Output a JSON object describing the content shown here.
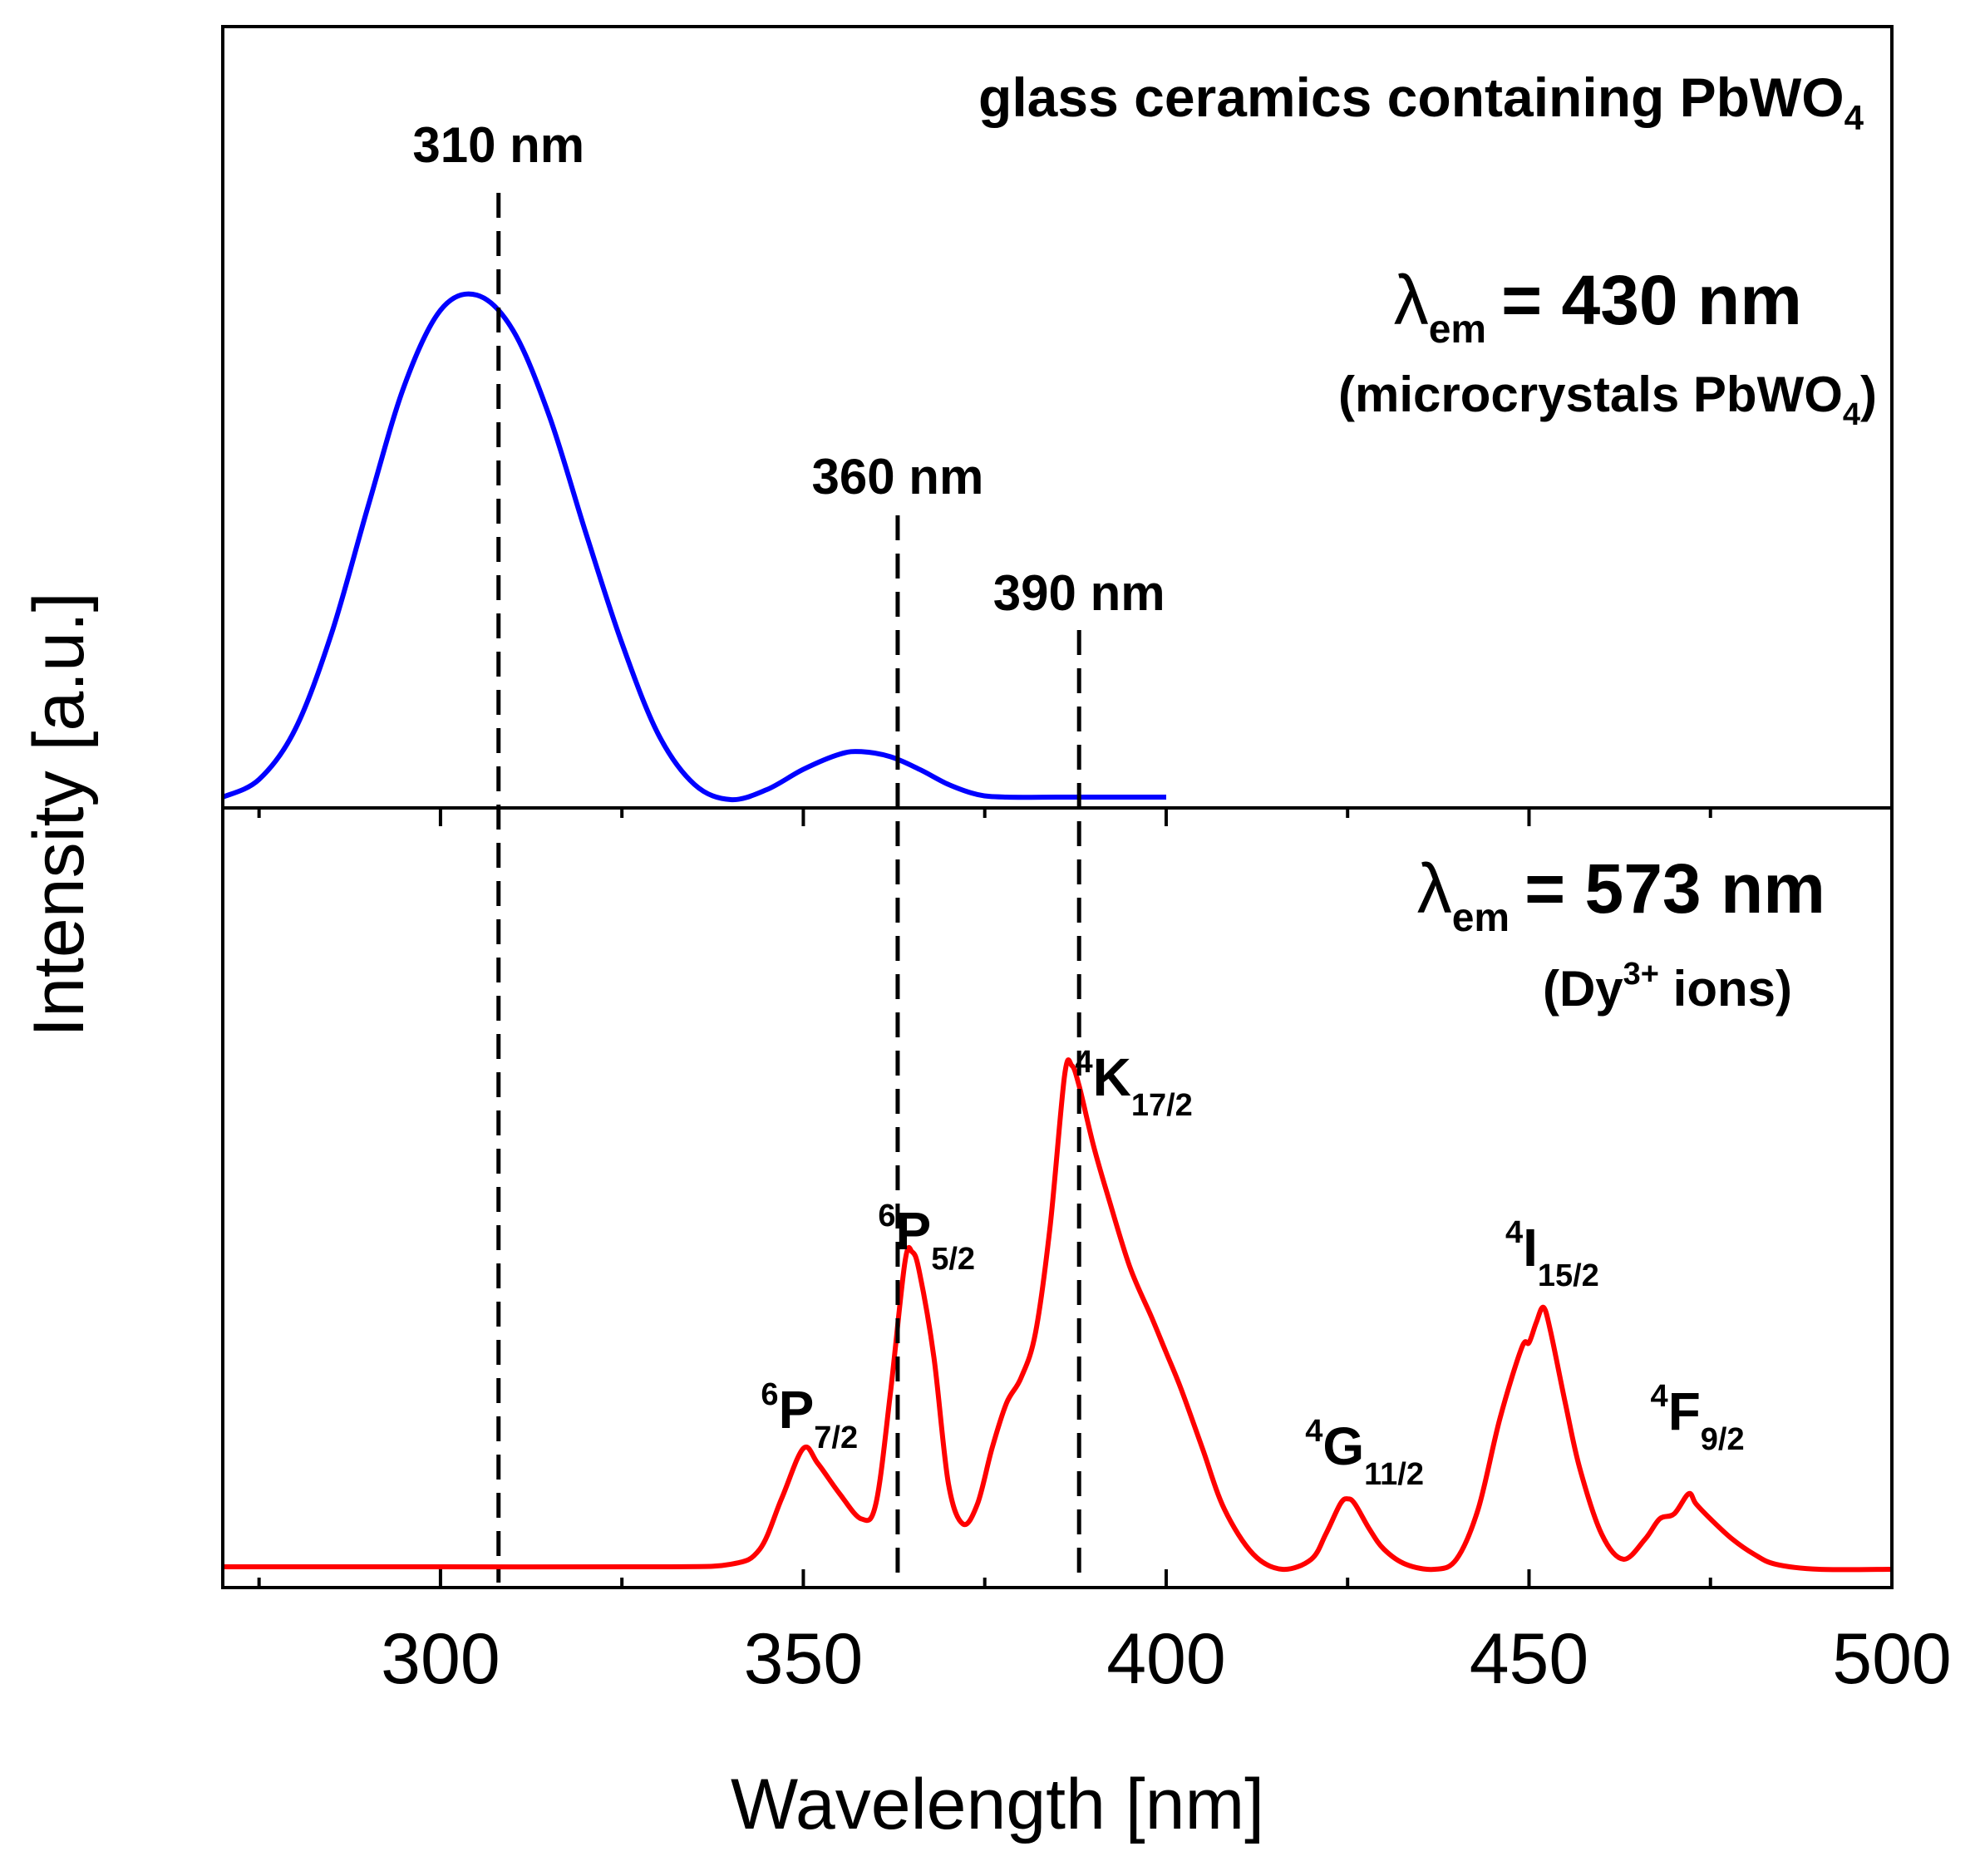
{
  "chart_data": {
    "type": "line",
    "title": "glass ceramics containing PbWO",
    "title_subscript": "4",
    "xlabel": "Wavelength [nm]",
    "ylabel": "Intensity [a.u.]",
    "xlim": [
      270,
      500
    ],
    "xticks": [
      300,
      350,
      400,
      450,
      500
    ],
    "xtick_labels": [
      "300",
      "350",
      "400",
      "450",
      "500"
    ],
    "grid": false,
    "legend": "none",
    "colors": {
      "top_series": "#0000ff",
      "bottom_series": "#ff0000",
      "reference_lines": "#000000"
    },
    "panels": [
      {
        "id": "top",
        "annotation": {
          "lambda": "λ",
          "subscript": "em",
          "value": "= 430 nm",
          "note_open": "(microcrystals PbWO",
          "note_subscript": "4",
          "note_close": ")"
        },
        "series": [
          {
            "color": "#0000ff",
            "x": [
              270,
              275,
              280,
              285,
              290,
              295,
              300,
              305,
              310,
              315,
              320,
              325,
              330,
              335,
              340,
              345,
              350,
              355,
              358,
              362,
              366,
              370,
              374,
              378,
              385,
              390,
              395,
              400
            ],
            "y": [
              0.005,
              0.04,
              0.14,
              0.33,
              0.58,
              0.82,
              0.97,
              1.0,
              0.93,
              0.76,
              0.53,
              0.31,
              0.13,
              0.03,
              0.0,
              0.02,
              0.06,
              0.09,
              0.095,
              0.085,
              0.06,
              0.03,
              0.01,
              0.005,
              0.005,
              0.005,
              0.005,
              0.005
            ]
          }
        ]
      },
      {
        "id": "bottom",
        "annotation": {
          "lambda": "λ",
          "subscript": "em",
          "value": "= 573 nm",
          "note_open": "(Dy",
          "note_superscript": "3+",
          "note_close": " ions)"
        },
        "series": [
          {
            "color": "#ff0000",
            "x": [
              270,
              300,
              330,
              340,
              344,
              347,
              350,
              352,
              355,
              358,
              360,
              362,
              364,
              365,
              366,
              368,
              370,
              372,
              374,
              376,
              378,
              380,
              382,
              384,
              386,
              387,
              388,
              390,
              392,
              395,
              398,
              400,
              402,
              405,
              408,
              412,
              416,
              420,
              422,
              424,
              425,
              426,
              428,
              430,
              433,
              437,
              440,
              443,
              446,
              449,
              450,
              451,
              452,
              453,
              455,
              457,
              460,
              463,
              466,
              468,
              470,
              472,
              473,
              475,
              478,
              481,
              484,
              490,
              500
            ],
            "y": [
              0.005,
              0.005,
              0.005,
              0.01,
              0.04,
              0.14,
              0.24,
              0.21,
              0.15,
              0.1,
              0.13,
              0.35,
              0.61,
              0.63,
              0.59,
              0.42,
              0.17,
              0.09,
              0.13,
              0.24,
              0.33,
              0.38,
              0.47,
              0.68,
              0.98,
              1.0,
              0.96,
              0.84,
              0.74,
              0.6,
              0.5,
              0.43,
              0.36,
              0.24,
              0.12,
              0.03,
              0.0,
              0.02,
              0.07,
              0.13,
              0.14,
              0.13,
              0.08,
              0.04,
              0.01,
              0.0,
              0.02,
              0.12,
              0.3,
              0.44,
              0.45,
              0.49,
              0.52,
              0.47,
              0.33,
              0.2,
              0.07,
              0.02,
              0.06,
              0.1,
              0.11,
              0.15,
              0.13,
              0.1,
              0.06,
              0.03,
              0.01,
              0.0,
              0.0
            ]
          }
        ],
        "transitions": [
          {
            "sup": "6",
            "main": "P",
            "sub": "7/2",
            "x": 350,
            "y": 0.24
          },
          {
            "sup": "6",
            "main": "P",
            "sub": "5/2",
            "x": 365,
            "y": 0.63
          },
          {
            "sup": "4",
            "main": "K",
            "sub": "17/2",
            "x": 387,
            "y": 1.0
          },
          {
            "sup": "4",
            "main": "G",
            "sub": "11/2",
            "x": 425,
            "y": 0.14
          },
          {
            "sup": "4",
            "main": "I",
            "sub": "15/2",
            "x": 452,
            "y": 0.52
          },
          {
            "sup": "4",
            "main": "F",
            "sub": "9/2",
            "x": 472,
            "y": 0.15
          }
        ]
      }
    ],
    "reference_lines": [
      {
        "x": 308,
        "label": "310 nm"
      },
      {
        "x": 363,
        "label": "360 nm"
      },
      {
        "x": 388,
        "label": "390 nm"
      }
    ]
  }
}
